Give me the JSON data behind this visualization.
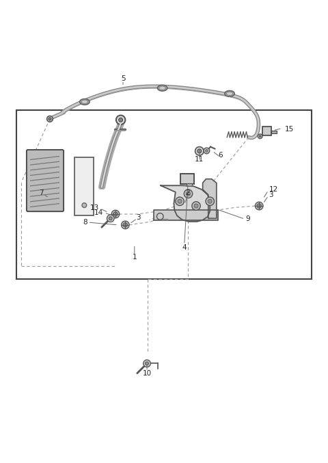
{
  "bg_color": "#ffffff",
  "line_color": "#555555",
  "box_color": "#333333",
  "label_color": "#222222",
  "fig_width": 4.8,
  "fig_height": 6.77,
  "dpi": 100
}
